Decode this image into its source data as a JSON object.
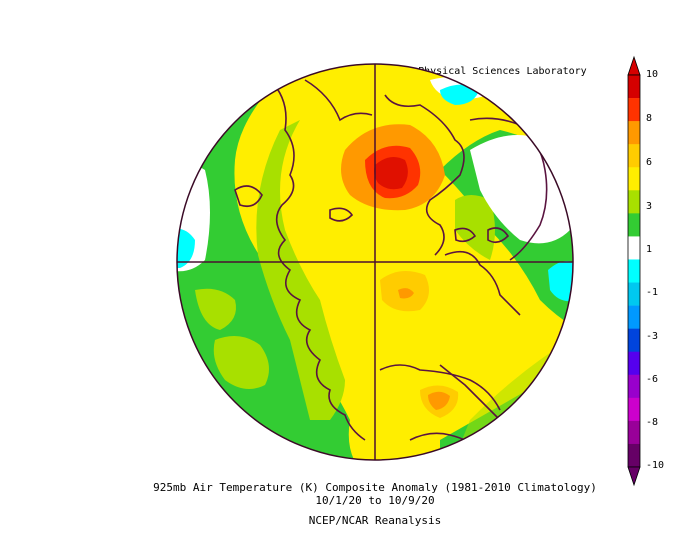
{
  "map": {
    "credit": "NOAA Physical Sciences Laboratory",
    "title_line1": "925mb Air Temperature (K) Composite Anomaly (1981-2010 Climatology)",
    "title_line2": "10/1/20  to 10/9/20",
    "title_line3": "NCEP/NCAR Reanalysis",
    "projection": "north polar stereographic",
    "colorbar": {
      "labels": [
        "10",
        "8",
        "6",
        "3",
        "1",
        "-1",
        "-3",
        "-6",
        "-8",
        "-10"
      ],
      "colors": [
        "#d50000",
        "#ff3300",
        "#ff9900",
        "#ffcc00",
        "#ffee00",
        "#a8e000",
        "#33cc33",
        "#ffffff",
        "#00ffff",
        "#00c8f0",
        "#0099ff",
        "#0044dd",
        "#5500ee",
        "#9900cc",
        "#cc00cc",
        "#990099",
        "#660066"
      ]
    }
  }
}
